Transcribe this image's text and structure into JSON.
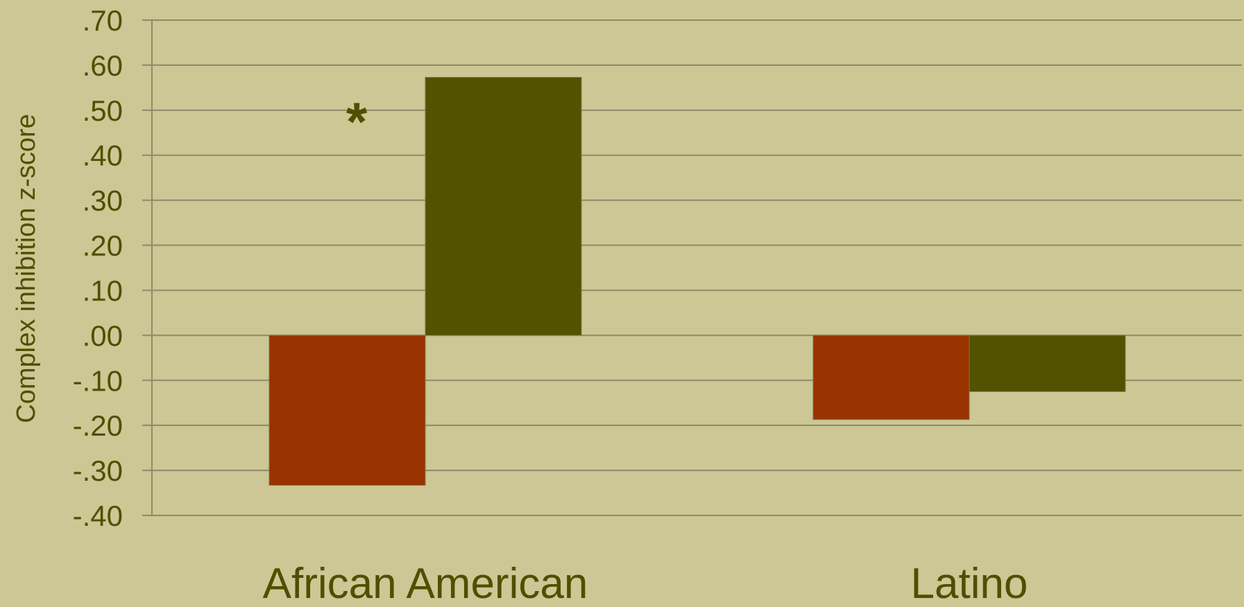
{
  "chart_data": {
    "type": "bar",
    "title": "",
    "xlabel": "",
    "ylabel": "Complex inhibition z-score",
    "ylim": [
      -0.4,
      0.7
    ],
    "yticks": [
      0.7,
      0.6,
      0.5,
      0.4,
      0.3,
      0.2,
      0.1,
      0.0,
      -0.1,
      -0.2,
      -0.3,
      -0.4
    ],
    "ytick_labels": [
      ".70",
      ".60",
      ".50",
      ".40",
      ".30",
      ".20",
      ".10",
      ".00",
      "-.10",
      "-.20",
      "-.30",
      "-.40"
    ],
    "grid": true,
    "legend": "none",
    "categories": [
      "African American",
      "Latino"
    ],
    "series": [
      {
        "color": "#993300",
        "values": [
          -0.333,
          -0.187
        ]
      },
      {
        "color": "#525200",
        "values": [
          0.573,
          -0.125
        ]
      }
    ],
    "annotations": [
      {
        "text": "*",
        "category": "African American",
        "y": 0.5
      }
    ]
  }
}
